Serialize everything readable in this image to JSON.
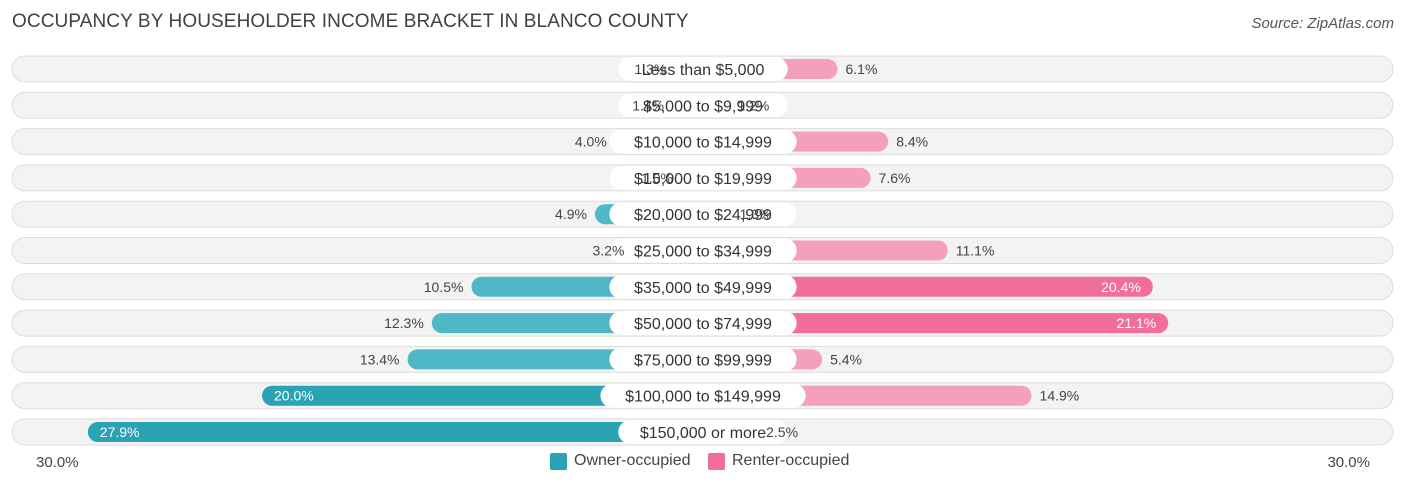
{
  "header": {
    "title": "OCCUPANCY BY HOUSEHOLDER INCOME BRACKET IN BLANCO COUNTY",
    "source": "Source: ZipAtlas.com"
  },
  "axis": {
    "left_label": "30.0%",
    "right_label": "30.0%"
  },
  "legend": {
    "owner_label": "Owner-occupied",
    "renter_label": "Renter-occupied"
  },
  "colors": {
    "owner": "#4fb8c6",
    "owner_strong": "#2aa3b3",
    "renter": "#f4a0bb",
    "renter_strong": "#f06e98",
    "row_bg": "#eeeeee"
  },
  "chart_data": {
    "type": "bar",
    "orientation": "horizontal-diverging",
    "xlim": [
      -30,
      30
    ],
    "categories": [
      "Less than $5,000",
      "$5,000 to $9,999",
      "$10,000 to $14,999",
      "$15,000 to $19,999",
      "$20,000 to $24,999",
      "$25,000 to $34,999",
      "$35,000 to $49,999",
      "$50,000 to $74,999",
      "$75,000 to $99,999",
      "$100,000 to $149,999",
      "$150,000 or more"
    ],
    "series": [
      {
        "name": "Owner-occupied",
        "values": [
          1.3,
          1.4,
          4.0,
          1.0,
          4.9,
          3.2,
          10.5,
          12.3,
          13.4,
          20.0,
          27.9
        ],
        "labels": [
          "1.3%",
          "1.4%",
          "4.0%",
          "1.0%",
          "4.9%",
          "3.2%",
          "10.5%",
          "12.3%",
          "13.4%",
          "20.0%",
          "27.9%"
        ]
      },
      {
        "name": "Renter-occupied",
        "values": [
          6.1,
          1.2,
          8.4,
          7.6,
          1.3,
          11.1,
          20.4,
          21.1,
          5.4,
          14.9,
          2.5
        ],
        "labels": [
          "6.1%",
          "1.2%",
          "8.4%",
          "7.6%",
          "1.3%",
          "11.1%",
          "20.4%",
          "21.1%",
          "5.4%",
          "14.9%",
          "2.5%"
        ]
      }
    ]
  }
}
